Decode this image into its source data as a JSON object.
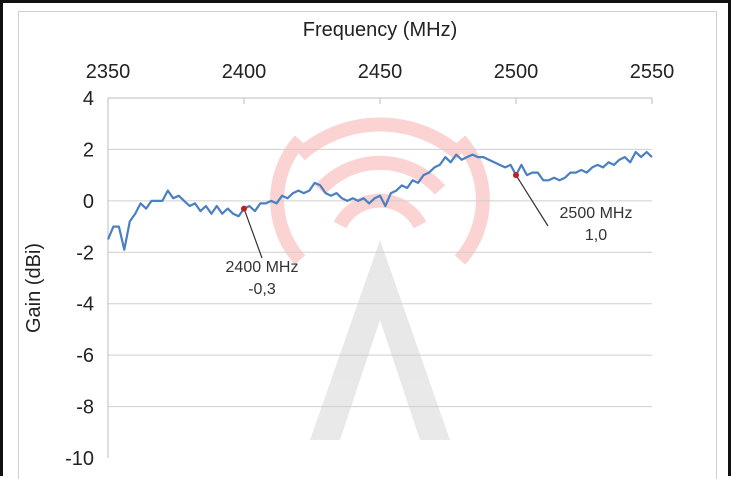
{
  "chart_data": {
    "type": "line",
    "title": "",
    "xlabel": "Frequency (MHz)",
    "ylabel": "Gain (dBi)",
    "x_axis_position": "top",
    "xlim": [
      2350,
      2550
    ],
    "ylim": [
      -10,
      4
    ],
    "xticks": [
      2350,
      2400,
      2450,
      2500,
      2550
    ],
    "yticks": [
      4,
      2,
      0,
      -2,
      -4,
      -6,
      -8,
      -10
    ],
    "xtick_labels": [
      "2350",
      "2400",
      "2450",
      "2500",
      "2550"
    ],
    "ytick_labels": [
      "4",
      "2",
      "0",
      "-2",
      "-4",
      "-6",
      "-8",
      "-10"
    ],
    "grid": "horizontal",
    "legend": "none",
    "line_color": "#4a7fc1",
    "series": [
      {
        "x": [
          2350,
          2352,
          2354,
          2356,
          2358,
          2360,
          2362,
          2364,
          2366,
          2368,
          2370,
          2372,
          2374,
          2376,
          2378,
          2380,
          2382,
          2384,
          2386,
          2388,
          2390,
          2392,
          2394,
          2396,
          2398,
          2400,
          2402,
          2404,
          2406,
          2408,
          2410,
          2412,
          2414,
          2416,
          2418,
          2420,
          2422,
          2424,
          2426,
          2428,
          2430,
          2432,
          2434,
          2436,
          2438,
          2440,
          2442,
          2444,
          2446,
          2448,
          2450,
          2452,
          2454,
          2456,
          2458,
          2460,
          2462,
          2464,
          2466,
          2468,
          2470,
          2472,
          2474,
          2476,
          2478,
          2480,
          2482,
          2484,
          2486,
          2488,
          2490,
          2492,
          2494,
          2496,
          2498,
          2500,
          2502,
          2504,
          2506,
          2508,
          2510,
          2512,
          2514,
          2516,
          2518,
          2520,
          2522,
          2524,
          2526,
          2528,
          2530,
          2532,
          2534,
          2536,
          2538,
          2540,
          2542,
          2544,
          2546,
          2548,
          2550
        ],
        "y": [
          -1.5,
          -1.0,
          -1.0,
          -1.9,
          -0.8,
          -0.5,
          -0.1,
          -0.3,
          0.0,
          0.0,
          0.0,
          0.4,
          0.1,
          0.2,
          0.0,
          -0.2,
          -0.1,
          -0.4,
          -0.2,
          -0.5,
          -0.2,
          -0.5,
          -0.3,
          -0.5,
          -0.6,
          -0.3,
          -0.2,
          -0.4,
          -0.1,
          -0.1,
          0.0,
          -0.1,
          0.2,
          0.1,
          0.3,
          0.4,
          0.3,
          0.4,
          0.7,
          0.6,
          0.3,
          0.2,
          0.3,
          0.1,
          0.0,
          0.1,
          0.0,
          0.1,
          -0.1,
          0.1,
          0.2,
          -0.2,
          0.3,
          0.4,
          0.6,
          0.5,
          0.8,
          0.7,
          1.0,
          1.1,
          1.3,
          1.4,
          1.7,
          1.5,
          1.8,
          1.6,
          1.7,
          1.8,
          1.7,
          1.7,
          1.6,
          1.5,
          1.4,
          1.3,
          1.4,
          1.0,
          1.4,
          1.0,
          1.1,
          1.1,
          0.8,
          0.8,
          0.9,
          0.8,
          0.9,
          1.1,
          1.1,
          1.2,
          1.1,
          1.3,
          1.4,
          1.3,
          1.5,
          1.4,
          1.6,
          1.7,
          1.5,
          1.9,
          1.7,
          1.9,
          1.7
        ]
      }
    ],
    "annotations": [
      {
        "x": 2400,
        "y": -0.3,
        "lines": [
          "2400 MHz",
          "-0,3"
        ]
      },
      {
        "x": 2500,
        "y": 1.0,
        "lines": [
          "2500 MHz",
          "1,0"
        ]
      }
    ]
  }
}
